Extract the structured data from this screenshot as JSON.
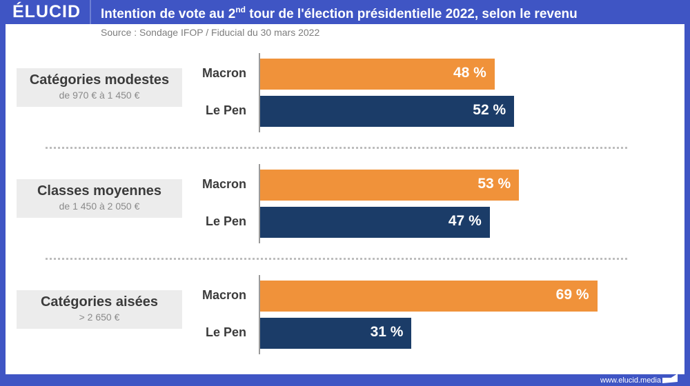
{
  "header": {
    "logo": "ÉLUCID",
    "title_pre": "Intention de vote au 2",
    "title_sup": "nd",
    "title_post": " tour de l'élection présidentielle 2022, selon le revenu",
    "source": "Source : Sondage IFOP / Fiducial du 30 mars 2022"
  },
  "footer": {
    "url": "www.elucid.media"
  },
  "colors": {
    "brand": "#3f55c4",
    "macron": "#f0923a",
    "lepen": "#1b3c68"
  },
  "chart_data": {
    "type": "bar",
    "orientation": "horizontal",
    "title": "Intention de vote au 2nd tour de l'élection présidentielle 2022, selon le revenu",
    "subtitle": "Source : Sondage IFOP / Fiducial du 30 mars 2022",
    "xlabel": "",
    "ylabel": "",
    "xlim": [
      0,
      100
    ],
    "grid": false,
    "unit": "%",
    "groups": [
      {
        "name": "Catégories modestes",
        "range": "de 970 € à 1 450 €",
        "bars": [
          {
            "candidate": "Macron",
            "value": 48,
            "label": "48 %"
          },
          {
            "candidate": "Le Pen",
            "value": 52,
            "label": "52 %"
          }
        ]
      },
      {
        "name": "Classes moyennes",
        "range": "de 1 450 à 2 050 €",
        "bars": [
          {
            "candidate": "Macron",
            "value": 53,
            "label": "53 %"
          },
          {
            "candidate": "Le Pen",
            "value": 47,
            "label": "47 %"
          }
        ]
      },
      {
        "name": "Catégories aisées",
        "range": "> 2 650 €",
        "bars": [
          {
            "candidate": "Macron",
            "value": 69,
            "label": "69 %"
          },
          {
            "candidate": "Le Pen",
            "value": 31,
            "label": "31 %"
          }
        ]
      }
    ]
  }
}
